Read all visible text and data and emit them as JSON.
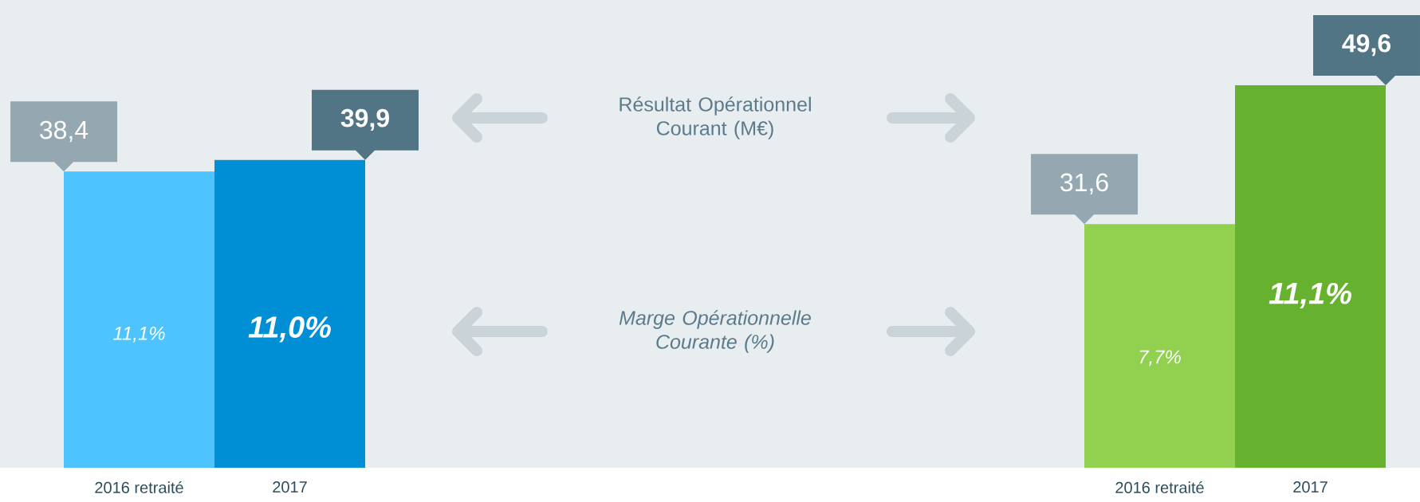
{
  "chart_data": [
    {
      "type": "bar",
      "categories": [
        "2016 retraité",
        "2017"
      ],
      "values": [
        38.4,
        39.9
      ],
      "colors": [
        "#4dc3ff",
        "#008fd5"
      ],
      "value_labels": [
        "38,4",
        "39,9"
      ],
      "annotations": [
        "11,1%",
        "11,0%"
      ]
    },
    {
      "type": "other",
      "annotations": [
        "Résultat Opérationnel Courant (M€)",
        "Marge Opérationnelle Courante (%)"
      ]
    },
    {
      "type": "bar",
      "categories": [
        "2016 retraité",
        "2017"
      ],
      "values": [
        31.6,
        49.6
      ],
      "colors": [
        "#92d050",
        "#66b22e"
      ],
      "value_labels": [
        "31,6",
        "49,6"
      ],
      "annotations": [
        "7,7%",
        "11,1%"
      ]
    }
  ]
}
